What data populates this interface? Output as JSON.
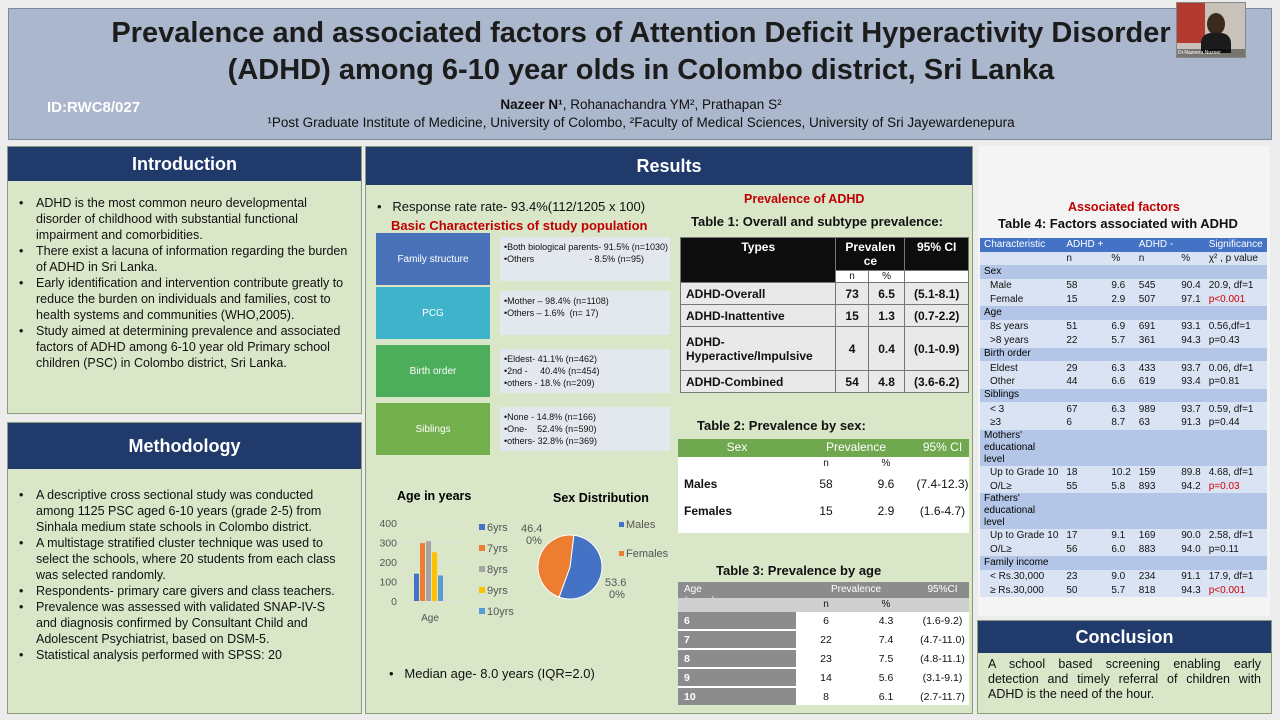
{
  "header": {
    "title": "Prevalence and associated factors of Attention Deficit Hyperactivity Disorder\n(ADHD) among 6-10 year olds in Colombo district, Sri Lanka",
    "poster_id": "ID:RWC8/027",
    "authors_lead": "Nazeer N¹",
    "authors_rest": ", Rohanachandra YM², Prathapan S²",
    "affiliation": "¹Post Graduate Institute of Medicine, University of Colombo, ²Faculty of Medical Sciences, University of Sri Jayewardenepura",
    "video_name": "Dr.Nazeera Nazeer"
  },
  "introduction": {
    "heading": "Introduction",
    "bullets": [
      "ADHD is the most common  neuro developmental disorder of childhood with substantial functional impairment and comorbidities.",
      "There exist a lacuna of information regarding the burden of ADHD in Sri Lanka.",
      "Early identification and intervention contribute greatly to reduce the burden on individuals and families, cost to health systems and communities (WHO,2005).",
      "Study aimed at determining prevalence and associated factors of ADHD among 6-10 year old Primary school children (PSC) in Colombo district, Sri Lanka."
    ]
  },
  "methodology": {
    "heading": "Methodology",
    "bullets": [
      "A descriptive cross sectional study was conducted among 1125 PSC aged 6-10 years (grade 2-5) from Sinhala medium state schools in Colombo district.",
      "A multistage stratified cluster technique was used to select the schools, where 20 students from each class was selected randomly.",
      "Respondents- primary care givers and class teachers.",
      "Prevalence was assessed with validated SNAP-IV-S and diagnosis confirmed by Consultant Child and Adolescent Psychiatrist, based on DSM-5.",
      "Statistical analysis performed with SPSS: 20"
    ]
  },
  "results": {
    "heading": "Results",
    "response_rate": "Response rate rate- 93.4%(112/1205 x 100)",
    "basic_title": "Basic Characteristics of study population",
    "characteristics": [
      {
        "label": "Family structure",
        "color": "#4a72b8",
        "text": "•Both biological parents- 91.5% (n=1030)\n•Others                      - 8.5% (n=95)"
      },
      {
        "label": "PCG",
        "color": "#3fb3c9",
        "text": "•Mother – 98.4% (n=1108)\n•Others – 1.6%  (n= 17)"
      },
      {
        "label": "Birth order",
        "color": "#4cae5a",
        "text": "•Eldest- 41.1% (n=462)\n•2nd -     40.4% (n=454)\n•others - 18.% (n=209)"
      },
      {
        "label": "Siblings",
        "color": "#73b04d",
        "text": "•None - 14.8% (n=166)\n•One-    52.4% (n=590)\n•others- 32.8% (n=369)"
      }
    ],
    "age_chart": {
      "title": "Age in years",
      "xlabel": "Age",
      "yticks": [
        "400",
        "300",
        "200",
        "100",
        "0"
      ],
      "legend": [
        "6yrs",
        "7yrs",
        "8yrs",
        "9yrs",
        "10yrs"
      ]
    },
    "sex_chart": {
      "title": "Sex Distribution",
      "legend": [
        "Males",
        "Females"
      ],
      "label_top": "46.4\n0%",
      "label_bottom": "53.6\n0%"
    },
    "median_age": "Median age- 8.0 years (IQR=2.0)",
    "prevalence_heading": "Prevalence of ADHD",
    "table1": {
      "title": "Table 1: Overall and subtype prevalence:",
      "head": [
        "Types",
        "Prevalen\nce",
        "95% CI"
      ],
      "sub": [
        "n",
        "%"
      ],
      "rows": [
        [
          "ADHD-Overall",
          "73",
          "6.5",
          "(5.1-8.1)"
        ],
        [
          "ADHD-Inattentive",
          "15",
          "1.3",
          "(0.7-2.2)"
        ],
        [
          "ADHD-\nHyperactive/Impulsive",
          "4",
          "0.4",
          "(0.1-0.9)"
        ],
        [
          "ADHD-Combined",
          "54",
          "4.8",
          "(3.6-6.2)"
        ]
      ]
    },
    "table2": {
      "title": "Table 2: Prevalence by sex:",
      "head": [
        "Sex",
        "Prevalence",
        "95% CI"
      ],
      "sub": [
        "n",
        "%"
      ],
      "rows": [
        [
          "Males",
          "58",
          "9.6",
          "(7.4-12.3)"
        ],
        [
          "Females",
          "15",
          "2.9",
          "(1.6-4.7)"
        ]
      ]
    },
    "table3": {
      "title": "Table 3: Prevalence by age",
      "head": [
        "Age\n(years)",
        "Prevalence",
        "95%CI"
      ],
      "sub": [
        "n",
        "%"
      ],
      "rows": [
        [
          "6",
          "6",
          "4.3",
          "(1.6-9.2)"
        ],
        [
          "7",
          "22",
          "7.4",
          "(4.7-11.0)"
        ],
        [
          "8",
          "23",
          "7.5",
          "(4.8-11.1)"
        ],
        [
          "9",
          "14",
          "5.6",
          "(3.1-9.1)"
        ],
        [
          "10",
          "8",
          "6.1",
          "(2.7-11.7)"
        ]
      ]
    },
    "associated_heading": "Associated factors",
    "table4": {
      "title": "Table 4: Factors associated with ADHD",
      "head": [
        "Characteristic",
        "ADHD +",
        "",
        "ADHD -",
        "",
        "Significance"
      ],
      "sub": [
        "",
        "n",
        "%",
        "n",
        "%",
        "χ² , p value"
      ],
      "rows": [
        {
          "sec": "Sex"
        },
        {
          "c": [
            "Male",
            "58",
            "9.6",
            "545",
            "90.4",
            "20.9, df=1"
          ]
        },
        {
          "c": [
            "Female",
            "15",
            "2.9",
            "507",
            "97.1",
            "p<0.001"
          ],
          "red": true
        },
        {
          "sec": "Age"
        },
        {
          "c": [
            "8≤ years",
            "51",
            "6.9",
            "691",
            "93.1",
            "0.56,df=1"
          ]
        },
        {
          "c": [
            ">8 years",
            "22",
            "5.7",
            "361",
            "94.3",
            "p=0.43"
          ]
        },
        {
          "sec": "Birth order"
        },
        {
          "c": [
            "Eldest",
            "29",
            "6.3",
            "433",
            "93.7",
            "0.06, df=1"
          ]
        },
        {
          "c": [
            "Other",
            "44",
            "6.6",
            "619",
            "93.4",
            "p=0.81"
          ]
        },
        {
          "sec": "Siblings"
        },
        {
          "c": [
            "< 3",
            "67",
            "6.3",
            "989",
            "93.7",
            "0.59, df=1"
          ]
        },
        {
          "c": [
            "≥3",
            "6",
            "8.7",
            "63",
            "91.3",
            "p=0.44"
          ]
        },
        {
          "sec": "Mothers'\neducational\nlevel",
          "tall": 3
        },
        {
          "c": [
            "Up to Grade 10",
            "18",
            "10.2",
            "159",
            "89.8",
            "4.68, df=1"
          ]
        },
        {
          "c": [
            "O/L≥",
            "55",
            "5.8",
            "893",
            "94.2",
            "p=0.03"
          ],
          "red": true
        },
        {
          "sec": "Fathers'\neducational\nlevel",
          "tall": 3
        },
        {
          "c": [
            "Up to Grade 10",
            "17",
            "9.1",
            "169",
            "90.0",
            "2.58, df=1"
          ]
        },
        {
          "c": [
            "O/L≥",
            "56",
            "6.0",
            "883",
            "94.0",
            "p=0.11"
          ]
        },
        {
          "sec": "Family income"
        },
        {
          "c": [
            "< Rs.30,000",
            "23",
            "9.0",
            "234",
            "91.1",
            "17.9, df=1"
          ]
        },
        {
          "c": [
            "≥ Rs.30,000",
            "50",
            "5.7",
            "818",
            "94.3",
            "p<0.001"
          ],
          "red": true
        }
      ]
    }
  },
  "conclusion": {
    "heading": "Conclusion",
    "text": "A school based screening enabling early detection and timely referral of children with ADHD is the need of the hour."
  },
  "chart_data": [
    {
      "type": "bar",
      "title": "Age in years",
      "xlabel": "Age",
      "categories": [
        "Age"
      ],
      "ylim": [
        0,
        400
      ],
      "series": [
        {
          "name": "6yrs",
          "values": [
            140
          ]
        },
        {
          "name": "7yrs",
          "values": [
            297
          ]
        },
        {
          "name": "8yrs",
          "values": [
            307
          ]
        },
        {
          "name": "9yrs",
          "values": [
            250
          ]
        },
        {
          "name": "10yrs",
          "values": [
            131
          ]
        }
      ],
      "colors": [
        "#4472c4",
        "#ed7d31",
        "#a5a5a5",
        "#ffc000",
        "#5b9bd5"
      ]
    },
    {
      "type": "pie",
      "title": "Sex Distribution",
      "categories": [
        "Males",
        "Females"
      ],
      "values": [
        53.6,
        46.4
      ],
      "colors": [
        "#4472c4",
        "#ed7d31"
      ]
    }
  ]
}
